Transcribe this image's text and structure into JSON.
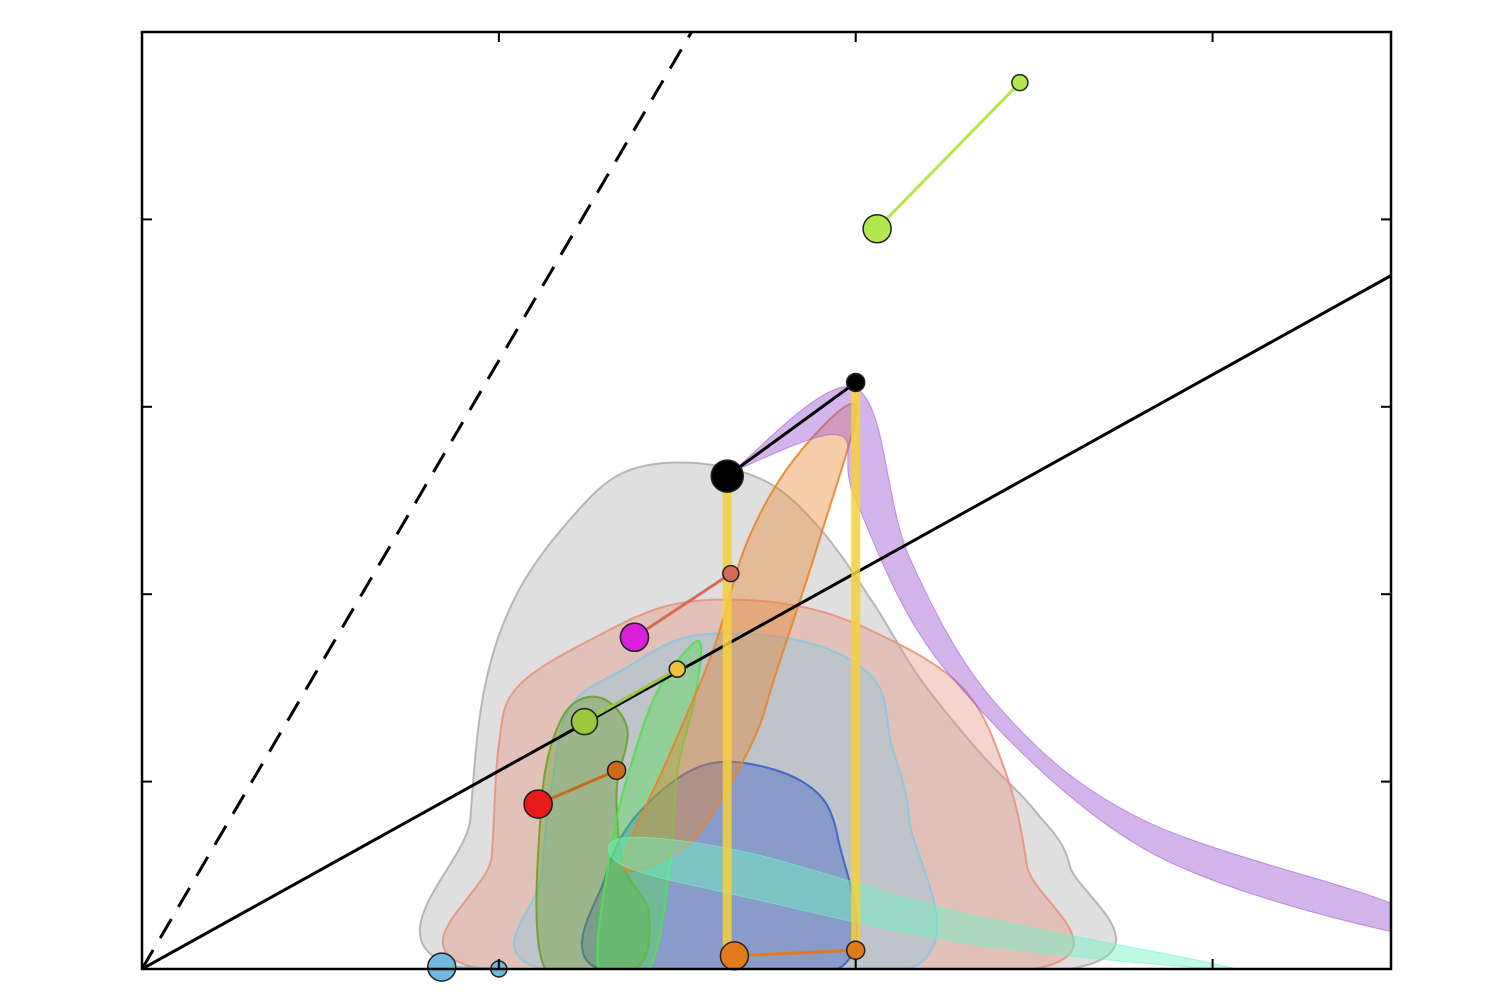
{
  "chart_data": {
    "type": "scatter",
    "title": "",
    "xlabel": "",
    "ylabel": "",
    "xlim": [
      0,
      3.5
    ],
    "ylim": [
      0,
      5
    ],
    "xticks": [
      0,
      1,
      2,
      3,
      3.5
    ],
    "yticks": [
      0,
      1,
      2,
      3,
      4,
      5
    ],
    "tick_labels_shown": false,
    "legend": "none",
    "grid": false,
    "reference_lines": [
      {
        "name": "dashed-line",
        "style": "dashed",
        "color": "#000000",
        "points": [
          [
            0,
            0
          ],
          [
            1.54,
            5
          ]
        ]
      },
      {
        "name": "solid-line",
        "style": "solid",
        "color": "#000000",
        "points": [
          [
            0,
            0
          ],
          [
            3.5,
            3.7
          ]
        ]
      }
    ],
    "contours": [
      {
        "name": "gray-region",
        "color": "#b0b0b0",
        "points": [
          [
            0.9,
            0
          ],
          [
            0.92,
            0.8
          ],
          [
            0.96,
            1.5
          ],
          [
            1.05,
            2
          ],
          [
            1.2,
            2.4
          ],
          [
            1.35,
            2.65
          ],
          [
            1.55,
            2.7
          ],
          [
            1.75,
            2.6
          ],
          [
            1.9,
            2.35
          ],
          [
            2.05,
            1.95
          ],
          [
            2.18,
            1.55
          ],
          [
            2.35,
            1.15
          ],
          [
            2.5,
            0.85
          ],
          [
            2.6,
            0.55
          ],
          [
            2.6,
            0
          ]
        ]
      },
      {
        "name": "salmon-region",
        "color": "#e6957d",
        "points": [
          [
            0.95,
            0
          ],
          [
            0.98,
            0.6
          ],
          [
            1.0,
            1.2
          ],
          [
            1.05,
            1.5
          ],
          [
            1.25,
            1.75
          ],
          [
            1.5,
            1.95
          ],
          [
            1.8,
            1.95
          ],
          [
            2.05,
            1.8
          ],
          [
            2.3,
            1.5
          ],
          [
            2.42,
            1.05
          ],
          [
            2.48,
            0.55
          ],
          [
            2.5,
            0
          ]
        ]
      },
      {
        "name": "light-blue-region",
        "color": "#8cc6e6",
        "points": [
          [
            1.12,
            0
          ],
          [
            1.12,
            0.5
          ],
          [
            1.15,
            1.0
          ],
          [
            1.2,
            1.4
          ],
          [
            1.35,
            1.6
          ],
          [
            1.55,
            1.78
          ],
          [
            1.85,
            1.75
          ],
          [
            2.05,
            1.55
          ],
          [
            2.1,
            1.2
          ],
          [
            2.15,
            0.8
          ],
          [
            2.15,
            0
          ]
        ]
      },
      {
        "name": "dark-blue-region",
        "color": "#3a5fc8",
        "points": [
          [
            1.28,
            0
          ],
          [
            1.3,
            0.5
          ],
          [
            1.4,
            0.85
          ],
          [
            1.6,
            1.1
          ],
          [
            1.85,
            1.0
          ],
          [
            1.95,
            0.7
          ],
          [
            1.95,
            0
          ]
        ]
      },
      {
        "name": "olive-region",
        "color": "#6aa12a",
        "points": [
          [
            1.13,
            0
          ],
          [
            1.12,
            0.9
          ],
          [
            1.18,
            1.35
          ],
          [
            1.28,
            1.45
          ],
          [
            1.36,
            1.28
          ],
          [
            1.33,
            0.95
          ],
          [
            1.35,
            0.55
          ],
          [
            1.42,
            0.3
          ],
          [
            1.38,
            0
          ]
        ]
      },
      {
        "name": "bright-green-region",
        "color": "#4fe24f",
        "points": [
          [
            1.28,
            0
          ],
          [
            1.32,
            0.7
          ],
          [
            1.38,
            1.15
          ],
          [
            1.45,
            1.5
          ],
          [
            1.56,
            1.75
          ],
          [
            1.55,
            1.45
          ],
          [
            1.5,
            1.05
          ],
          [
            1.48,
            0.55
          ],
          [
            1.42,
            0
          ]
        ]
      },
      {
        "name": "orange-region",
        "color": "#e8842a",
        "points": [
          [
            1.35,
            0.55
          ],
          [
            1.48,
            1.15
          ],
          [
            1.6,
            1.7
          ],
          [
            1.7,
            2.3
          ],
          [
            1.84,
            2.75
          ],
          [
            2.0,
            3.0
          ],
          [
            1.9,
            2.3
          ],
          [
            1.78,
            1.6
          ],
          [
            1.72,
            1.25
          ],
          [
            1.62,
            0.9
          ],
          [
            1.52,
            0.65
          ]
        ]
      }
    ],
    "bands": [
      {
        "name": "purple-band",
        "color": "#a05ad2",
        "upper": [
          [
            1.65,
            2.65
          ],
          [
            2.0,
            3.1
          ],
          [
            2.15,
            2.2
          ],
          [
            2.4,
            1.4
          ],
          [
            2.8,
            0.8
          ],
          [
            3.5,
            0.35
          ]
        ],
        "lower": [
          [
            1.65,
            2.65
          ],
          [
            1.95,
            2.85
          ],
          [
            2.0,
            2.5
          ],
          [
            2.25,
            1.6
          ],
          [
            2.8,
            0.65
          ],
          [
            3.5,
            0.2
          ]
        ]
      },
      {
        "name": "mint-band",
        "color": "#6ef5c4",
        "upper": [
          [
            1.35,
            0.7
          ],
          [
            1.7,
            0.62
          ],
          [
            2.3,
            0.3
          ],
          [
            3.0,
            0.03
          ]
        ],
        "lower": [
          [
            1.35,
            0.55
          ],
          [
            1.7,
            0.38
          ],
          [
            2.3,
            0.14
          ],
          [
            3.0,
            0.0
          ]
        ]
      }
    ],
    "series": [
      {
        "color": "#000000",
        "x": [
          1.64,
          2.0
        ],
        "y": [
          2.63,
          3.13
        ],
        "sizes": [
          16,
          9
        ]
      },
      {
        "color": "#b0e84e",
        "x": [
          2.06,
          2.46
        ],
        "y": [
          3.95,
          4.73
        ],
        "sizes": [
          14,
          8
        ]
      },
      {
        "color": "#f4d03f",
        "x": [
          1.64,
          1.64
        ],
        "y": [
          2.6,
          0.07
        ],
        "sizes": [
          0,
          0
        ]
      },
      {
        "color": "#f4d03f",
        "x": [
          2.0,
          2.0
        ],
        "y": [
          3.1,
          0.1
        ],
        "sizes": [
          0,
          0
        ]
      },
      {
        "color": "#e07a1a",
        "x": [
          1.66,
          2.0
        ],
        "y": [
          0.07,
          0.1
        ],
        "sizes": [
          14,
          9
        ]
      },
      {
        "color": "#d86a5a",
        "x": [
          1.38,
          1.65
        ],
        "y": [
          1.77,
          2.11
        ],
        "sizes": [
          14,
          8
        ]
      },
      {
        "color": "#d91fd9",
        "x": [
          1.38
        ],
        "y": [
          1.77
        ],
        "sizes": [
          14
        ]
      },
      {
        "color": "#cc6a1a",
        "x": [
          1.11,
          1.33
        ],
        "y": [
          0.88,
          1.06
        ],
        "sizes": [
          14,
          9
        ]
      },
      {
        "color": "#e81a1a",
        "x": [
          1.11
        ],
        "y": [
          0.88
        ],
        "sizes": [
          14
        ]
      },
      {
        "color": "#9bc83a",
        "x": [
          1.24,
          1.5
        ],
        "y": [
          1.32,
          1.6
        ],
        "sizes": [
          13,
          8
        ]
      },
      {
        "color": "#f0c040",
        "x": [
          1.5
        ],
        "y": [
          1.6
        ],
        "sizes": [
          8
        ]
      },
      {
        "color": "#6fb8e0",
        "x": [
          0.84,
          1.0
        ],
        "y": [
          0.01,
          0.0
        ],
        "sizes": [
          14,
          8
        ]
      }
    ]
  }
}
